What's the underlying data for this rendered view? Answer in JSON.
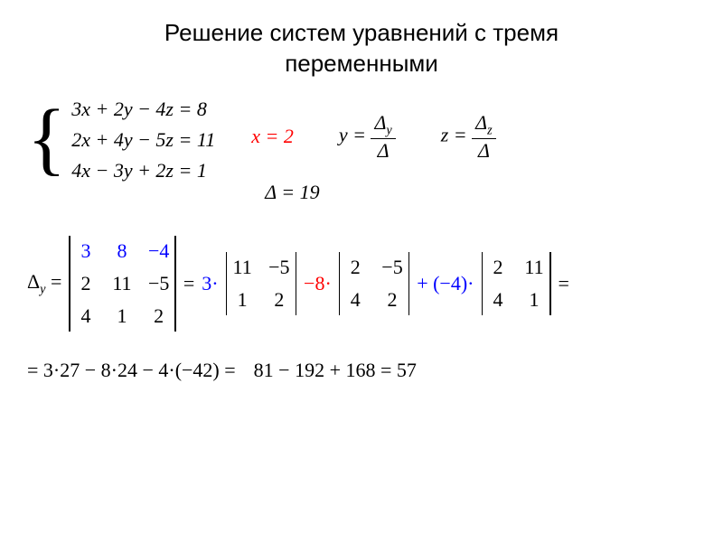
{
  "title_line1": "Решение систем уравнений с тремя",
  "title_line2": "переменными",
  "system": {
    "eq1": "3x + 2y − 4z = 8",
    "eq2": "2x + 4y − 5z = 11",
    "eq3": "4x − 3y + 2z = 1"
  },
  "results": {
    "x_solution": "x = 2",
    "y_label": "y = ",
    "z_label": "z = ",
    "delta_y_sym": "Δ",
    "delta_z_sym": "Δ",
    "delta_sym": "Δ",
    "y_sub": "y",
    "z_sub": "z"
  },
  "delta_value": "Δ = 19",
  "expansion": {
    "lhs": "Δ",
    "lhs_sub": "y",
    "eq": " = ",
    "det3": {
      "r1": [
        "3",
        "8",
        "−4"
      ],
      "r2": [
        "2",
        "11",
        "−5"
      ],
      "r3": [
        "4",
        "1",
        "2"
      ]
    },
    "top_row_color": "#0000ff",
    "eq2": " = ",
    "coef1": "3",
    "dot": "·",
    "det2a": [
      "11",
      "−5",
      "1",
      "2"
    ],
    "minus8": "−8",
    "det2b": [
      "2",
      "−5",
      "4",
      "2"
    ],
    "plus_neg4": "+ (−4)",
    "det2c": [
      "2",
      "11",
      "4",
      "1"
    ],
    "end_eq": "="
  },
  "calc": {
    "line1": "= 3·27 − 8·24 − 4·(−42) =",
    "line2": "81 − 192 + 168 = 57"
  },
  "colors": {
    "red": "#ff0000",
    "blue": "#0000ff",
    "text": "#000000",
    "background": "#ffffff"
  },
  "typography": {
    "title_font": "Arial",
    "body_font": "Times New Roman",
    "title_size_pt": 20,
    "body_size_pt": 17
  }
}
